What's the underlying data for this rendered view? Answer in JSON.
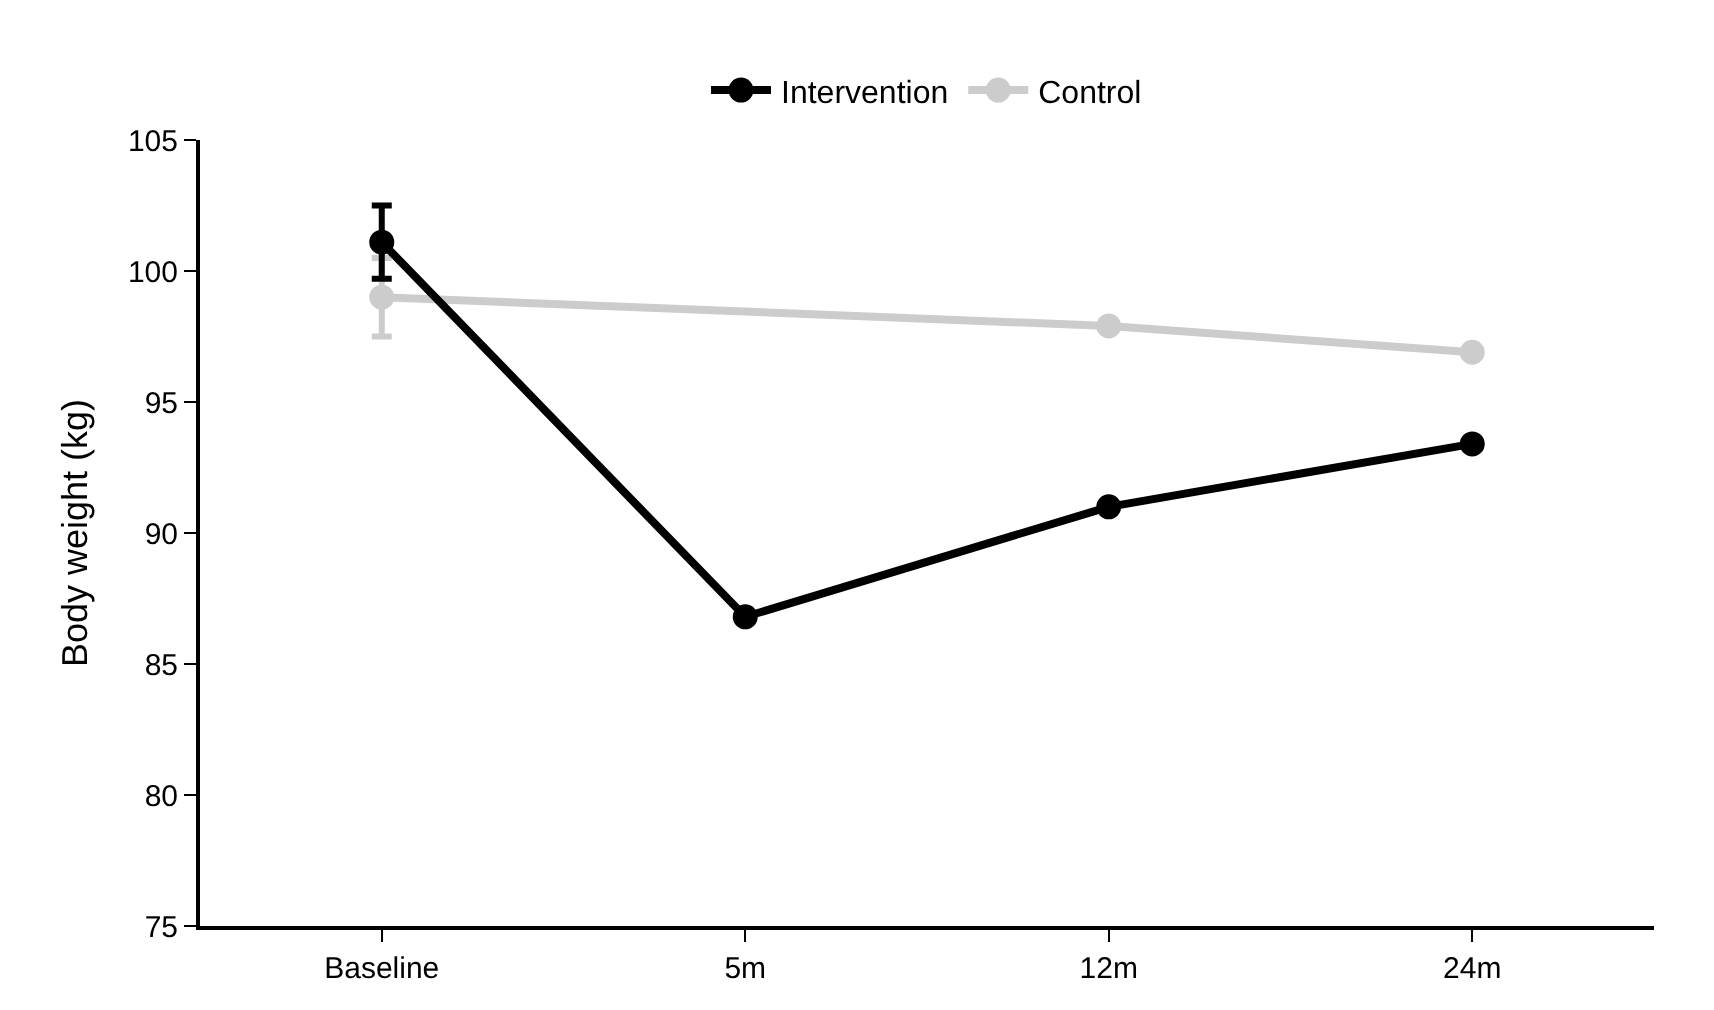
{
  "chart_data": {
    "type": "line",
    "ylabel": "Body weight (kg)",
    "categories": [
      "Baseline",
      "5m",
      "12m",
      "24m"
    ],
    "series": [
      {
        "name": "Intervention",
        "color": "#000000",
        "values": [
          101.1,
          86.8,
          91.0,
          93.4
        ],
        "errors": [
          1.4,
          null,
          null,
          null
        ]
      },
      {
        "name": "Control",
        "color": "#cccccc",
        "values": [
          99.0,
          null,
          97.9,
          96.9
        ],
        "errors": [
          1.5,
          null,
          null,
          null
        ]
      }
    ],
    "ylim": [
      75,
      105
    ],
    "yticks": [
      75,
      80,
      85,
      90,
      95,
      100,
      105
    ],
    "legend": "top",
    "marker": "circle",
    "line_style": "solid"
  }
}
